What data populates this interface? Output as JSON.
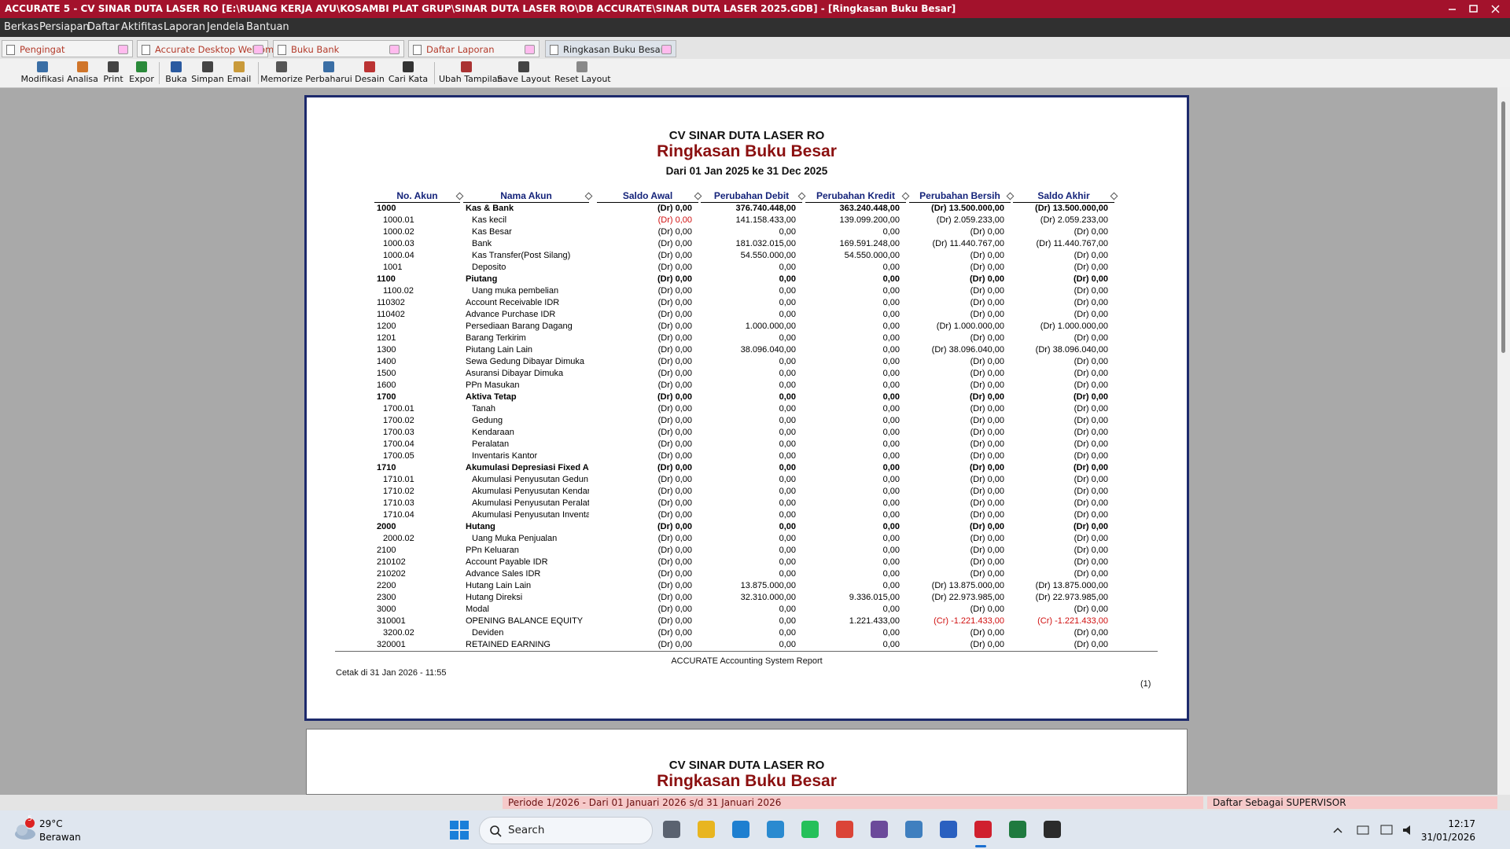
{
  "window": {
    "title": "ACCURATE 5 - CV SINAR DUTA LASER RO   [E:\\RUANG KERJA AYU\\KOSAMBI PLAT GRUP\\SINAR DUTA LASER RO\\DB ACCURATE\\SINAR DUTA LASER 2025.GDB] - [Ringkasan Buku Besar]",
    "menu": [
      "Berkas",
      "Persiapan",
      "Daftar",
      "Aktifitas",
      "Laporan",
      "Jendela",
      "Bantuan"
    ],
    "tabs": [
      {
        "label": "Pengingat"
      },
      {
        "label": "Accurate Desktop Welcome"
      },
      {
        "label": "Buku Bank"
      },
      {
        "label": "Daftar Laporan"
      },
      {
        "label": "Ringkasan Buku Besar",
        "active": true
      }
    ],
    "toolbar": [
      "Modifikasi",
      "Analisa",
      "Print",
      "Expor",
      "Buka",
      "Simpan",
      "Email",
      "Memorize",
      "Perbaharui",
      "Desain",
      "Cari Kata",
      "Ubah Tampilan",
      "Save Layout",
      "Reset Layout"
    ]
  },
  "report": {
    "company": "CV SINAR DUTA LASER RO",
    "title": "Ringkasan Buku Besar",
    "period": "Dari 01 Jan 2025 ke 31 Dec 2025",
    "columns": [
      "No. Akun",
      "Nama Akun",
      "Saldo Awal",
      "Perubahan Debit",
      "Perubahan Kredit",
      "Perubahan Bersih",
      "Saldo Akhir"
    ],
    "rows": [
      {
        "style": "bold",
        "cells": [
          "1000",
          "Kas & Bank",
          "(Dr) 0,00",
          "376.740.448,00",
          "363.240.448,00",
          "(Dr) 13.500.000,00",
          "(Dr) 13.500.000,00"
        ]
      },
      {
        "style": "sub",
        "red": [
          2
        ],
        "cells": [
          "1000.01",
          "Kas kecil",
          "(Dr) 0,00",
          "141.158.433,00",
          "139.099.200,00",
          "(Dr) 2.059.233,00",
          "(Dr) 2.059.233,00"
        ]
      },
      {
        "style": "sub",
        "cells": [
          "1000.02",
          "Kas Besar",
          "(Dr) 0,00",
          "0,00",
          "0,00",
          "(Dr) 0,00",
          "(Dr) 0,00"
        ]
      },
      {
        "style": "sub",
        "cells": [
          "1000.03",
          "Bank",
          "(Dr) 0,00",
          "181.032.015,00",
          "169.591.248,00",
          "(Dr) 11.440.767,00",
          "(Dr) 11.440.767,00"
        ]
      },
      {
        "style": "sub",
        "cells": [
          "1000.04",
          "Kas Transfer(Post Silang)",
          "(Dr) 0,00",
          "54.550.000,00",
          "54.550.000,00",
          "(Dr) 0,00",
          "(Dr) 0,00"
        ]
      },
      {
        "style": "sub",
        "cells": [
          "1001",
          "Deposito",
          "(Dr) 0,00",
          "0,00",
          "0,00",
          "(Dr) 0,00",
          "(Dr) 0,00"
        ]
      },
      {
        "style": "bold",
        "cells": [
          "1100",
          "Piutang",
          "(Dr) 0,00",
          "0,00",
          "0,00",
          "(Dr) 0,00",
          "(Dr) 0,00"
        ]
      },
      {
        "style": "sub",
        "cells": [
          "1100.02",
          "Uang muka pembelian",
          "(Dr) 0,00",
          "0,00",
          "0,00",
          "(Dr) 0,00",
          "(Dr) 0,00"
        ]
      },
      {
        "style": "plain",
        "cells": [
          "110302",
          "Account Receivable IDR",
          "(Dr) 0,00",
          "0,00",
          "0,00",
          "(Dr) 0,00",
          "(Dr) 0,00"
        ]
      },
      {
        "style": "plain",
        "cells": [
          "110402",
          "Advance Purchase IDR",
          "(Dr) 0,00",
          "0,00",
          "0,00",
          "(Dr) 0,00",
          "(Dr) 0,00"
        ]
      },
      {
        "style": "plain",
        "cells": [
          "1200",
          "Persediaan Barang Dagang",
          "(Dr) 0,00",
          "1.000.000,00",
          "0,00",
          "(Dr) 1.000.000,00",
          "(Dr) 1.000.000,00"
        ]
      },
      {
        "style": "plain",
        "cells": [
          "1201",
          "Barang Terkirim",
          "(Dr) 0,00",
          "0,00",
          "0,00",
          "(Dr) 0,00",
          "(Dr) 0,00"
        ]
      },
      {
        "style": "plain",
        "cells": [
          "1300",
          "Piutang Lain Lain",
          "(Dr) 0,00",
          "38.096.040,00",
          "0,00",
          "(Dr) 38.096.040,00",
          "(Dr) 38.096.040,00"
        ]
      },
      {
        "style": "plain",
        "cells": [
          "1400",
          "Sewa Gedung Dibayar Dimuka",
          "(Dr) 0,00",
          "0,00",
          "0,00",
          "(Dr) 0,00",
          "(Dr) 0,00"
        ]
      },
      {
        "style": "plain",
        "cells": [
          "1500",
          "Asuransi Dibayar Dimuka",
          "(Dr) 0,00",
          "0,00",
          "0,00",
          "(Dr) 0,00",
          "(Dr) 0,00"
        ]
      },
      {
        "style": "plain",
        "cells": [
          "1600",
          "PPn Masukan",
          "(Dr) 0,00",
          "0,00",
          "0,00",
          "(Dr) 0,00",
          "(Dr) 0,00"
        ]
      },
      {
        "style": "bold",
        "cells": [
          "1700",
          "Aktiva Tetap",
          "(Dr) 0,00",
          "0,00",
          "0,00",
          "(Dr) 0,00",
          "(Dr) 0,00"
        ]
      },
      {
        "style": "sub",
        "cells": [
          "1700.01",
          "Tanah",
          "(Dr) 0,00",
          "0,00",
          "0,00",
          "(Dr) 0,00",
          "(Dr) 0,00"
        ]
      },
      {
        "style": "sub",
        "cells": [
          "1700.02",
          "Gedung",
          "(Dr) 0,00",
          "0,00",
          "0,00",
          "(Dr) 0,00",
          "(Dr) 0,00"
        ]
      },
      {
        "style": "sub",
        "cells": [
          "1700.03",
          "Kendaraan",
          "(Dr) 0,00",
          "0,00",
          "0,00",
          "(Dr) 0,00",
          "(Dr) 0,00"
        ]
      },
      {
        "style": "sub",
        "cells": [
          "1700.04",
          "Peralatan",
          "(Dr) 0,00",
          "0,00",
          "0,00",
          "(Dr) 0,00",
          "(Dr) 0,00"
        ]
      },
      {
        "style": "sub",
        "cells": [
          "1700.05",
          "Inventaris Kantor",
          "(Dr) 0,00",
          "0,00",
          "0,00",
          "(Dr) 0,00",
          "(Dr) 0,00"
        ]
      },
      {
        "style": "bold",
        "cells": [
          "1710",
          "Akumulasi Depresiasi Fixed As",
          "(Dr) 0,00",
          "0,00",
          "0,00",
          "(Dr) 0,00",
          "(Dr) 0,00"
        ]
      },
      {
        "style": "sub",
        "cells": [
          "1710.01",
          "Akumulasi Penyusutan Gedun",
          "(Dr) 0,00",
          "0,00",
          "0,00",
          "(Dr) 0,00",
          "(Dr) 0,00"
        ]
      },
      {
        "style": "sub",
        "cells": [
          "1710.02",
          "Akumulasi Penyusutan Kendar",
          "(Dr) 0,00",
          "0,00",
          "0,00",
          "(Dr) 0,00",
          "(Dr) 0,00"
        ]
      },
      {
        "style": "sub",
        "cells": [
          "1710.03",
          "Akumulasi Penyusutan Peralat",
          "(Dr) 0,00",
          "0,00",
          "0,00",
          "(Dr) 0,00",
          "(Dr) 0,00"
        ]
      },
      {
        "style": "sub",
        "cells": [
          "1710.04",
          "Akumulasi Penyusutan Inventa",
          "(Dr) 0,00",
          "0,00",
          "0,00",
          "(Dr) 0,00",
          "(Dr) 0,00"
        ]
      },
      {
        "style": "bold",
        "cells": [
          "2000",
          "Hutang",
          "(Dr) 0,00",
          "0,00",
          "0,00",
          "(Dr) 0,00",
          "(Dr) 0,00"
        ]
      },
      {
        "style": "sub",
        "cells": [
          "2000.02",
          "Uang Muka Penjualan",
          "(Dr) 0,00",
          "0,00",
          "0,00",
          "(Dr) 0,00",
          "(Dr) 0,00"
        ]
      },
      {
        "style": "plain",
        "cells": [
          "2100",
          "PPn Keluaran",
          "(Dr) 0,00",
          "0,00",
          "0,00",
          "(Dr) 0,00",
          "(Dr) 0,00"
        ]
      },
      {
        "style": "plain",
        "cells": [
          "210102",
          "Account Payable IDR",
          "(Dr) 0,00",
          "0,00",
          "0,00",
          "(Dr) 0,00",
          "(Dr) 0,00"
        ]
      },
      {
        "style": "plain",
        "cells": [
          "210202",
          "Advance Sales IDR",
          "(Dr) 0,00",
          "0,00",
          "0,00",
          "(Dr) 0,00",
          "(Dr) 0,00"
        ]
      },
      {
        "style": "plain",
        "cells": [
          "2200",
          "Hutang Lain Lain",
          "(Dr) 0,00",
          "13.875.000,00",
          "0,00",
          "(Dr) 13.875.000,00",
          "(Dr) 13.875.000,00"
        ]
      },
      {
        "style": "plain",
        "cells": [
          "2300",
          "Hutang Direksi",
          "(Dr) 0,00",
          "32.310.000,00",
          "9.336.015,00",
          "(Dr) 22.973.985,00",
          "(Dr) 22.973.985,00"
        ]
      },
      {
        "style": "plain",
        "cells": [
          "3000",
          "Modal",
          "(Dr) 0,00",
          "0,00",
          "0,00",
          "(Dr) 0,00",
          "(Dr) 0,00"
        ]
      },
      {
        "style": "plain",
        "red": [
          5,
          6
        ],
        "cells": [
          "310001",
          "OPENING BALANCE EQUITY",
          "(Dr) 0,00",
          "0,00",
          "1.221.433,00",
          "(Cr) -1.221.433,00",
          "(Cr) -1.221.433,00"
        ]
      },
      {
        "style": "sub",
        "cells": [
          "3200.02",
          "Deviden",
          "(Dr) 0,00",
          "0,00",
          "0,00",
          "(Dr) 0,00",
          "(Dr) 0,00"
        ]
      },
      {
        "style": "plain",
        "cells": [
          "320001",
          "RETAINED EARNING",
          "(Dr) 0,00",
          "0,00",
          "0,00",
          "(Dr) 0,00",
          "(Dr) 0,00"
        ]
      }
    ],
    "footer": "ACCURATE Accounting System Report",
    "printed": "Cetak di 31 Jan 2026 - 11:55",
    "page": "(1)"
  },
  "status": {
    "period": "Periode 1/2026 - Dari 01 Januari 2026 s/d 31 Januari 2026",
    "user": "Daftar Sebagai SUPERVISOR"
  },
  "taskbar": {
    "badge": "5",
    "temp": "29°C",
    "weather": "Berawan",
    "search": "Search",
    "time": "12:17",
    "date": "31/01/2026"
  }
}
